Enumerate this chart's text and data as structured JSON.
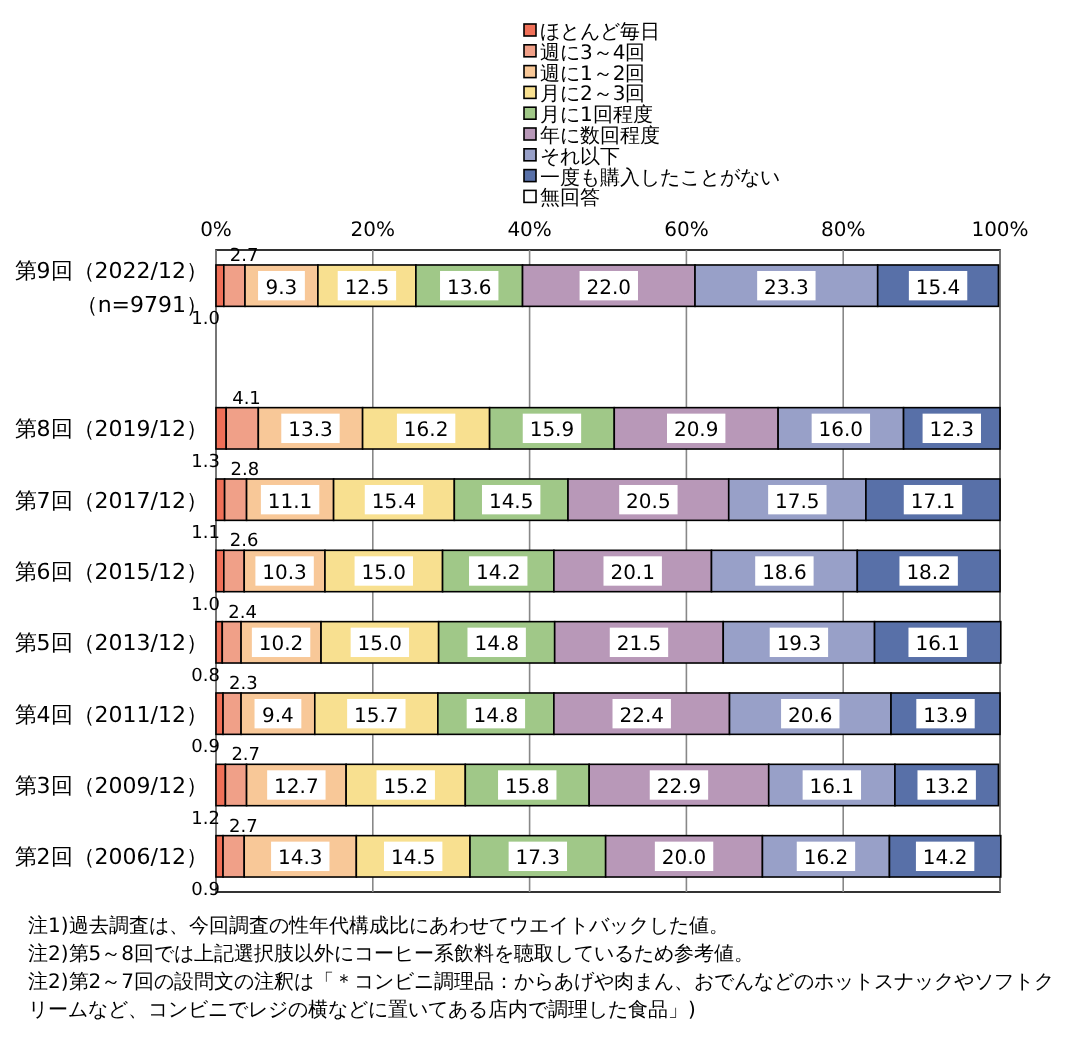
{
  "chart_data": {
    "type": "bar",
    "orientation": "horizontal",
    "stacked": true,
    "categories": [
      "第9回（2022/12）（n=9791）",
      null,
      "第8回（2019/12）",
      "第7回（2017/12）",
      "第6回（2015/12）",
      "第5回（2013/12）",
      "第4回（2011/12）",
      "第3回（2009/12）",
      "第2回（2006/12）"
    ],
    "series": [
      {
        "name": "ほとんど毎日",
        "color": "#f07058",
        "values": [
          1.0,
          null,
          1.3,
          1.1,
          1.0,
          0.8,
          0.9,
          1.2,
          0.9
        ],
        "value_labels": [
          "1.0",
          null,
          "1.3",
          "1.1",
          "1.0",
          "0.8",
          "0.9",
          "1.2",
          "0.9"
        ]
      },
      {
        "name": "週に3～4回",
        "color": "#f0a088",
        "values": [
          2.7,
          null,
          4.1,
          2.8,
          2.6,
          2.4,
          2.3,
          2.7,
          2.7
        ],
        "value_labels": [
          "2.7",
          null,
          "4.1",
          "2.8",
          "2.6",
          "2.4",
          "2.3",
          "2.7",
          "2.7"
        ]
      },
      {
        "name": "週に1～2回",
        "color": "#f8c898",
        "values": [
          9.3,
          null,
          13.3,
          11.1,
          10.3,
          10.2,
          9.4,
          12.7,
          14.3
        ],
        "value_labels": [
          "9.3",
          null,
          "13.3",
          "11.1",
          "10.3",
          "10.2",
          "9.4",
          "12.7",
          "14.3"
        ]
      },
      {
        "name": "月に2～3回",
        "color": "#f8e090",
        "values": [
          12.5,
          null,
          16.2,
          15.4,
          15.0,
          15.0,
          15.7,
          15.2,
          14.5
        ],
        "value_labels": [
          "12.5",
          null,
          "16.2",
          "15.4",
          "15.0",
          "15.0",
          "15.7",
          "15.2",
          "14.5"
        ]
      },
      {
        "name": "月に1回程度",
        "color": "#a0c888",
        "values": [
          13.6,
          null,
          15.9,
          14.5,
          14.2,
          14.8,
          14.8,
          15.8,
          17.3
        ],
        "value_labels": [
          "13.6",
          null,
          "15.9",
          "14.5",
          "14.2",
          "14.8",
          "14.8",
          "15.8",
          "17.3"
        ]
      },
      {
        "name": "年に数回程度",
        "color": "#b898b8",
        "values": [
          22.0,
          null,
          20.9,
          20.5,
          20.1,
          21.5,
          22.4,
          22.9,
          20.0
        ],
        "value_labels": [
          "22.0",
          null,
          "20.9",
          "20.5",
          "20.1",
          "21.5",
          "22.4",
          "22.9",
          "20.0"
        ]
      },
      {
        "name": "それ以下",
        "color": "#98a0c8",
        "values": [
          23.3,
          null,
          16.0,
          17.5,
          18.6,
          19.3,
          20.6,
          16.1,
          16.2
        ],
        "value_labels": [
          "23.3",
          null,
          "16.0",
          "17.5",
          "18.6",
          "19.3",
          "20.6",
          "16.1",
          "16.2"
        ]
      },
      {
        "name": "一度も購入したことがない",
        "color": "#5870a8",
        "values": [
          15.4,
          null,
          12.3,
          17.1,
          18.2,
          16.1,
          13.9,
          13.2,
          14.2
        ],
        "value_labels": [
          "15.4",
          null,
          "12.3",
          "17.1",
          "18.2",
          "16.1",
          "13.9",
          "13.2",
          "14.2"
        ]
      },
      {
        "name": "無回答",
        "color": "#ffffff",
        "values": [
          null,
          null,
          null,
          null,
          null,
          null,
          null,
          null,
          null
        ]
      }
    ],
    "xlim": [
      0,
      100
    ],
    "xticks": [
      {
        "value": 0,
        "label": "0%"
      },
      {
        "value": 20,
        "label": "20%"
      },
      {
        "value": 40,
        "label": "40%"
      },
      {
        "value": 60,
        "label": "60%"
      },
      {
        "value": 80,
        "label": "80%"
      },
      {
        "value": 100,
        "label": "100%"
      }
    ],
    "grid": "x",
    "legend": "top",
    "annotations": [
      "注1)過去調査は、今回調査の性年代構成比にあわせてウエイトバックした値。",
      "注2)第5～8回では上記選択肢以外にコーヒー系飲料を聴取しているため参考値。",
      "注2)第2～7回の設問文の注釈は「＊コンビニ調理品：からあげや肉まん、おでんなどのホットスナックやソフトクリームなど、コンビニでレジの横などに置いてある店内で調理した食品」)"
    ]
  }
}
